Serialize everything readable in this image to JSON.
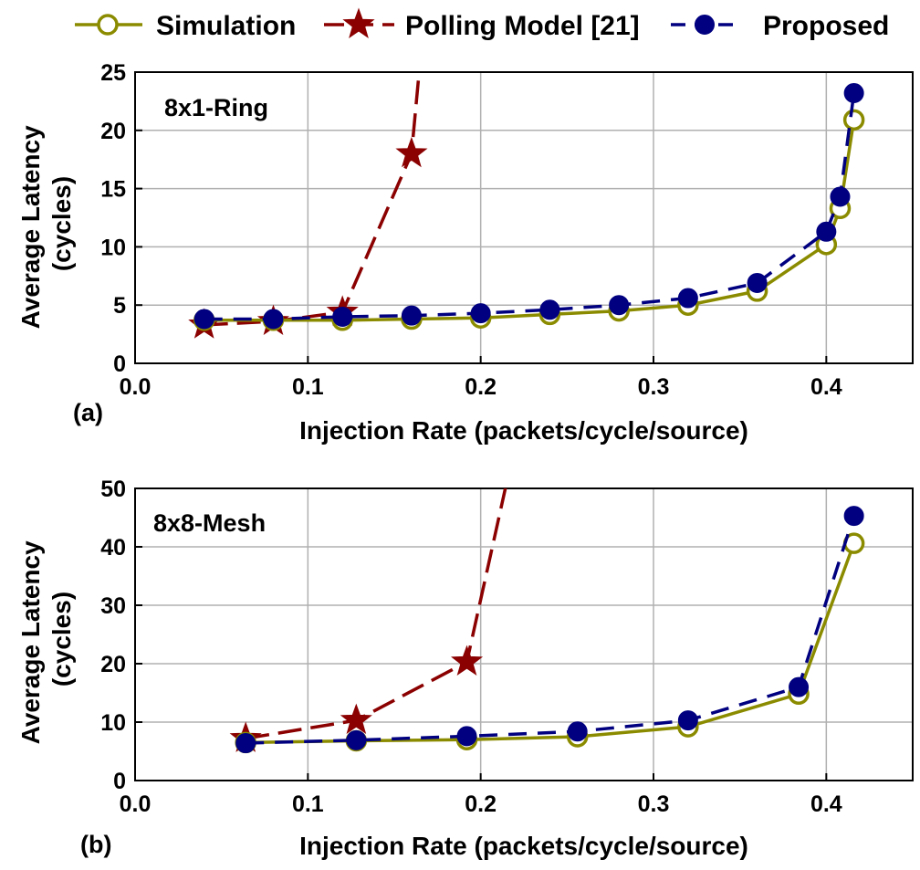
{
  "legend": {
    "entries": [
      {
        "label": "Simulation",
        "color": "#8b8b00",
        "marker": "open-circle",
        "dash": "solid"
      },
      {
        "label": "Polling Model [21]",
        "color": "#8b0000",
        "marker": "star",
        "dash": "long-dash"
      },
      {
        "label": "Proposed",
        "color": "#000080",
        "marker": "filled-circle",
        "dash": "dash"
      }
    ]
  },
  "chart_data": [
    {
      "type": "line",
      "panel_label": "(a)",
      "annotation": "8x1-Ring",
      "xlabel": "Injection Rate (packets/cycle/source)",
      "ylabel": "Average Latency (cycles)",
      "xlim": [
        0,
        0.45
      ],
      "ylim": [
        0,
        25
      ],
      "xticks": [
        "0.0",
        "0.1",
        "0.2",
        "0.3",
        "0.4"
      ],
      "yticks": [
        "0",
        "5",
        "10",
        "15",
        "20",
        "25"
      ],
      "grid": true,
      "legend_position": "top",
      "series": [
        {
          "name": "Simulation",
          "x": [
            0.04,
            0.08,
            0.12,
            0.16,
            0.2,
            0.24,
            0.28,
            0.32,
            0.36,
            0.4,
            0.408,
            0.416
          ],
          "y": [
            3.7,
            3.7,
            3.7,
            3.8,
            3.9,
            4.2,
            4.5,
            5.0,
            6.2,
            10.2,
            13.3,
            20.9
          ]
        },
        {
          "name": "Polling Model [21]",
          "x": [
            0.04,
            0.08,
            0.12,
            0.16,
            0.165
          ],
          "y": [
            3.3,
            3.6,
            4.4,
            18.0,
            26.0
          ]
        },
        {
          "name": "Proposed",
          "x": [
            0.04,
            0.08,
            0.12,
            0.16,
            0.2,
            0.24,
            0.28,
            0.32,
            0.36,
            0.4,
            0.408,
            0.416
          ],
          "y": [
            3.8,
            3.8,
            4.0,
            4.1,
            4.3,
            4.6,
            5.0,
            5.6,
            6.9,
            11.3,
            14.3,
            23.2
          ]
        }
      ]
    },
    {
      "type": "line",
      "panel_label": "(b)",
      "annotation": "8x8-Mesh",
      "xlabel": "Injection Rate (packets/cycle/source)",
      "ylabel": "Average Latency (cycles)",
      "xlim": [
        0,
        0.45
      ],
      "ylim": [
        0,
        50
      ],
      "xticks": [
        "0.0",
        "0.1",
        "0.2",
        "0.3",
        "0.4"
      ],
      "yticks": [
        "0",
        "10",
        "20",
        "30",
        "40",
        "50"
      ],
      "grid": true,
      "series": [
        {
          "name": "Simulation",
          "x": [
            0.064,
            0.128,
            0.192,
            0.256,
            0.32,
            0.384,
            0.416
          ],
          "y": [
            6.5,
            6.8,
            7.0,
            7.5,
            9.2,
            14.8,
            40.6
          ]
        },
        {
          "name": "Polling Model [21]",
          "x": [
            0.064,
            0.128,
            0.192,
            0.215
          ],
          "y": [
            7.2,
            10.3,
            20.3,
            51.0
          ]
        },
        {
          "name": "Proposed",
          "x": [
            0.064,
            0.128,
            0.192,
            0.256,
            0.32,
            0.384,
            0.416
          ],
          "y": [
            6.4,
            6.9,
            7.6,
            8.4,
            10.3,
            16.0,
            45.3
          ]
        }
      ]
    }
  ]
}
